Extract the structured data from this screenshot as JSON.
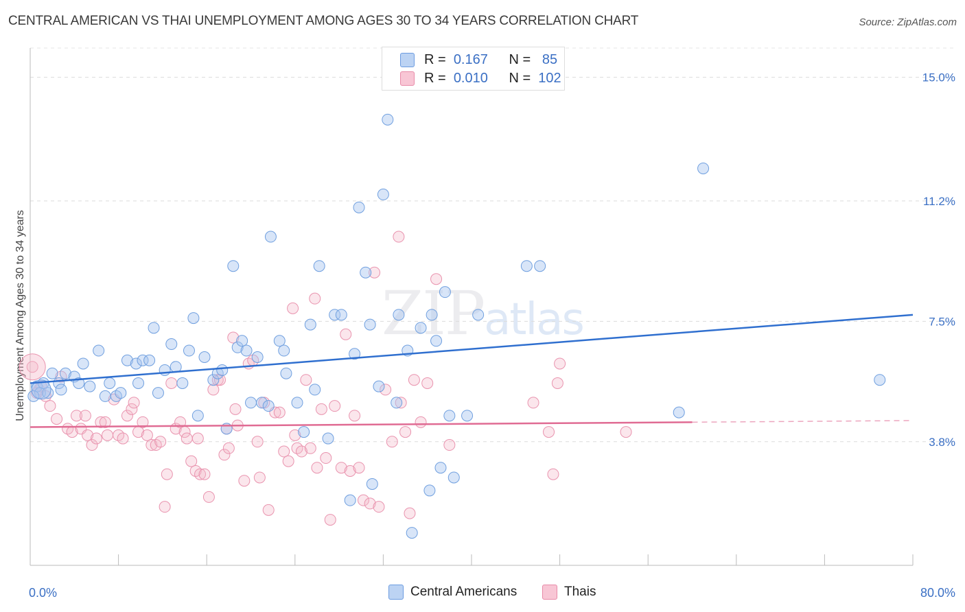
{
  "title": "CENTRAL AMERICAN VS THAI UNEMPLOYMENT AMONG AGES 30 TO 34 YEARS CORRELATION CHART",
  "source": "Source: ZipAtlas.com",
  "watermark": {
    "zip": "ZIP",
    "atlas": "atlas"
  },
  "legend": {
    "r_label": "R =",
    "n_label": "N =",
    "series": [
      {
        "name": "Central Americans",
        "r": "0.167",
        "n": "85"
      },
      {
        "name": "Thais",
        "r": "0.010",
        "n": "102"
      }
    ]
  },
  "colors": {
    "blue": "#a8c6f0",
    "blue_line": "#2f6fcf",
    "pink": "#f4b6c8",
    "pink_line": "#e06b93",
    "axis_text": "#3a6fc4"
  },
  "chart_data": {
    "type": "scatter",
    "title": "CENTRAL AMERICAN VS THAI UNEMPLOYMENT AMONG AGES 30 TO 34 YEARS CORRELATION CHART",
    "xlabel": "",
    "ylabel": "Unemployment Among Ages 30 to 34 years",
    "xlim": [
      0,
      80
    ],
    "ylim": [
      0,
      15.9
    ],
    "x_tick_labels": [
      "0.0%",
      "80.0%"
    ],
    "y_ticks": [
      3.8,
      7.5,
      11.2,
      15.0
    ],
    "y_tick_labels": [
      "3.8%",
      "7.5%",
      "11.2%",
      "15.0%"
    ],
    "series": [
      {
        "name": "Central Americans",
        "r": 0.167,
        "n": 85,
        "trend": {
          "x": [
            0,
            80
          ],
          "y": [
            5.6,
            7.7
          ]
        },
        "points": [
          [
            0.6,
            5.5
          ],
          [
            0.9,
            5.3
          ],
          [
            1.2,
            5.6
          ],
          [
            1.6,
            5.3
          ],
          [
            2.0,
            5.9
          ],
          [
            2.6,
            5.6
          ],
          [
            2.8,
            5.4
          ],
          [
            3.2,
            5.9
          ],
          [
            4.0,
            5.8
          ],
          [
            4.4,
            5.6
          ],
          [
            4.8,
            6.2
          ],
          [
            5.4,
            5.5
          ],
          [
            6.2,
            6.6
          ],
          [
            6.8,
            5.2
          ],
          [
            7.2,
            5.6
          ],
          [
            7.8,
            5.2
          ],
          [
            8.2,
            5.3
          ],
          [
            8.8,
            6.3
          ],
          [
            9.6,
            6.2
          ],
          [
            9.8,
            5.6
          ],
          [
            10.2,
            6.3
          ],
          [
            10.8,
            6.3
          ],
          [
            11.2,
            7.3
          ],
          [
            11.6,
            5.3
          ],
          [
            12.2,
            6.0
          ],
          [
            12.8,
            6.8
          ],
          [
            13.2,
            6.1
          ],
          [
            13.8,
            5.6
          ],
          [
            14.4,
            6.6
          ],
          [
            14.8,
            7.6
          ],
          [
            15.2,
            4.6
          ],
          [
            15.8,
            6.4
          ],
          [
            16.6,
            5.7
          ],
          [
            17.0,
            5.9
          ],
          [
            17.4,
            6.0
          ],
          [
            17.8,
            4.2
          ],
          [
            18.4,
            9.2
          ],
          [
            18.8,
            6.7
          ],
          [
            19.2,
            6.9
          ],
          [
            19.6,
            6.6
          ],
          [
            20.0,
            5.0
          ],
          [
            20.6,
            6.4
          ],
          [
            21.0,
            5.0
          ],
          [
            21.6,
            4.9
          ],
          [
            21.8,
            10.1
          ],
          [
            22.6,
            6.9
          ],
          [
            23.0,
            6.6
          ],
          [
            23.2,
            5.9
          ],
          [
            24.2,
            5.0
          ],
          [
            24.8,
            4.1
          ],
          [
            25.4,
            7.4
          ],
          [
            25.8,
            5.4
          ],
          [
            26.2,
            9.2
          ],
          [
            27.0,
            3.9
          ],
          [
            27.6,
            7.7
          ],
          [
            28.2,
            7.7
          ],
          [
            29.0,
            2.0
          ],
          [
            29.4,
            6.5
          ],
          [
            29.8,
            11.0
          ],
          [
            30.4,
            9.0
          ],
          [
            30.8,
            7.4
          ],
          [
            31.0,
            2.5
          ],
          [
            31.6,
            5.5
          ],
          [
            32.0,
            11.4
          ],
          [
            32.4,
            13.7
          ],
          [
            33.2,
            5.0
          ],
          [
            33.4,
            7.7
          ],
          [
            34.2,
            6.6
          ],
          [
            34.6,
            1.0
          ],
          [
            35.4,
            7.3
          ],
          [
            36.2,
            2.3
          ],
          [
            36.4,
            7.7
          ],
          [
            36.8,
            6.9
          ],
          [
            37.2,
            3.0
          ],
          [
            37.6,
            8.4
          ],
          [
            38.0,
            4.6
          ],
          [
            38.4,
            2.7
          ],
          [
            39.6,
            4.6
          ],
          [
            40.6,
            7.7
          ],
          [
            45.0,
            9.2
          ],
          [
            46.2,
            9.2
          ],
          [
            58.8,
            4.7
          ],
          [
            61.0,
            12.2
          ],
          [
            77.0,
            5.7
          ],
          [
            0.3,
            5.2
          ]
        ]
      },
      {
        "name": "Thais",
        "r": 0.01,
        "n": 102,
        "trend": {
          "x": [
            0,
            60
          ],
          "y": [
            4.25,
            4.4
          ]
        },
        "trend_dashed": {
          "x": [
            60,
            80
          ],
          "y": [
            4.4,
            4.45
          ]
        },
        "points": [
          [
            0.2,
            6.1
          ],
          [
            0.8,
            5.4
          ],
          [
            1.4,
            5.2
          ],
          [
            1.8,
            4.9
          ],
          [
            2.4,
            4.5
          ],
          [
            2.8,
            5.8
          ],
          [
            3.4,
            4.2
          ],
          [
            3.8,
            4.1
          ],
          [
            4.2,
            4.6
          ],
          [
            4.6,
            4.2
          ],
          [
            5.0,
            4.6
          ],
          [
            5.2,
            4.0
          ],
          [
            5.6,
            3.7
          ],
          [
            6.0,
            3.9
          ],
          [
            6.4,
            4.4
          ],
          [
            6.8,
            4.4
          ],
          [
            7.0,
            4.0
          ],
          [
            7.6,
            5.1
          ],
          [
            8.0,
            4.0
          ],
          [
            8.4,
            3.9
          ],
          [
            8.8,
            4.6
          ],
          [
            9.2,
            4.8
          ],
          [
            9.4,
            5.0
          ],
          [
            9.8,
            4.1
          ],
          [
            10.2,
            4.4
          ],
          [
            10.6,
            4.0
          ],
          [
            11.0,
            3.7
          ],
          [
            11.4,
            3.7
          ],
          [
            11.8,
            3.8
          ],
          [
            12.2,
            1.8
          ],
          [
            12.4,
            2.8
          ],
          [
            12.8,
            5.6
          ],
          [
            13.2,
            4.2
          ],
          [
            13.6,
            4.4
          ],
          [
            14.0,
            4.1
          ],
          [
            14.2,
            3.9
          ],
          [
            14.6,
            3.2
          ],
          [
            15.0,
            2.9
          ],
          [
            15.2,
            3.9
          ],
          [
            15.4,
            2.8
          ],
          [
            15.8,
            2.8
          ],
          [
            16.2,
            2.1
          ],
          [
            16.6,
            5.4
          ],
          [
            17.0,
            5.7
          ],
          [
            17.2,
            5.7
          ],
          [
            17.6,
            3.4
          ],
          [
            17.8,
            4.2
          ],
          [
            18.0,
            3.6
          ],
          [
            18.4,
            7.0
          ],
          [
            18.6,
            4.8
          ],
          [
            18.8,
            4.3
          ],
          [
            19.4,
            2.6
          ],
          [
            19.8,
            6.2
          ],
          [
            20.2,
            6.3
          ],
          [
            20.6,
            3.8
          ],
          [
            20.8,
            2.7
          ],
          [
            21.2,
            5.0
          ],
          [
            21.6,
            1.7
          ],
          [
            22.2,
            4.7
          ],
          [
            22.6,
            4.7
          ],
          [
            23.0,
            3.5
          ],
          [
            23.4,
            3.2
          ],
          [
            23.8,
            7.9
          ],
          [
            24.2,
            3.6
          ],
          [
            24.6,
            3.5
          ],
          [
            25.0,
            5.7
          ],
          [
            25.4,
            3.6
          ],
          [
            25.8,
            8.2
          ],
          [
            26.4,
            4.8
          ],
          [
            26.8,
            3.3
          ],
          [
            27.2,
            1.4
          ],
          [
            27.6,
            4.9
          ],
          [
            28.2,
            3.0
          ],
          [
            28.6,
            7.1
          ],
          [
            29.0,
            2.9
          ],
          [
            29.4,
            4.6
          ],
          [
            29.8,
            3.0
          ],
          [
            30.2,
            2.0
          ],
          [
            30.8,
            1.9
          ],
          [
            31.2,
            9.0
          ],
          [
            31.6,
            1.8
          ],
          [
            32.2,
            5.4
          ],
          [
            32.8,
            3.8
          ],
          [
            33.4,
            10.1
          ],
          [
            33.6,
            5.0
          ],
          [
            34.0,
            4.1
          ],
          [
            34.4,
            1.6
          ],
          [
            34.8,
            5.7
          ],
          [
            35.4,
            4.4
          ],
          [
            36.0,
            5.6
          ],
          [
            36.8,
            8.8
          ],
          [
            38.0,
            3.7
          ],
          [
            45.6,
            5.0
          ],
          [
            47.0,
            4.1
          ],
          [
            47.8,
            5.6
          ],
          [
            47.4,
            2.8
          ],
          [
            48.0,
            6.2
          ],
          [
            54.0,
            4.1
          ],
          [
            0.6,
            5.3
          ],
          [
            1.0,
            5.5
          ],
          [
            24.0,
            4.0
          ],
          [
            26.0,
            3.0
          ]
        ]
      }
    ]
  }
}
